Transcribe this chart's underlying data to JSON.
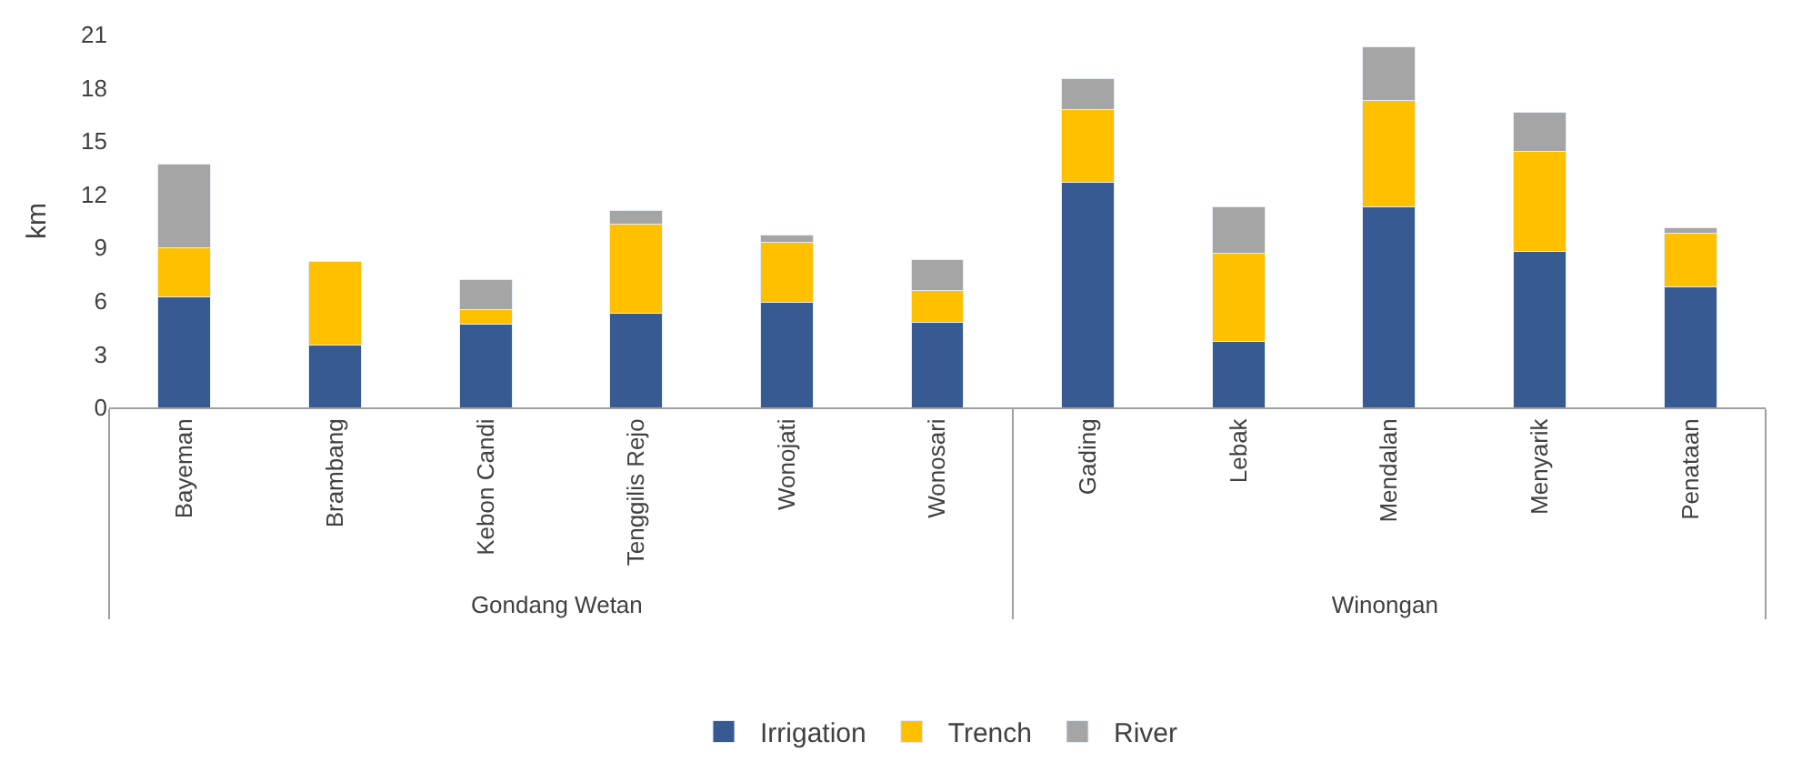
{
  "chart_data": {
    "type": "bar",
    "stacked": true,
    "ylabel": "km",
    "categories": [
      "Bayeman",
      "Brambang",
      "Kebon Candi",
      "Tenggilis Rejo",
      "Wonojati",
      "Wonosari",
      "Gading",
      "Lebak",
      "Mendalan",
      "Menyarik",
      "Penataan"
    ],
    "annotations": [
      "Gondang Wetan",
      "Winongan"
    ],
    "series": [
      {
        "name": "Irrigation",
        "color": "#365a91",
        "values": [
          6.2,
          3.5,
          4.7,
          5.3,
          5.9,
          4.8,
          12.7,
          3.7,
          11.3,
          8.8,
          6.8
        ]
      },
      {
        "name": "Trench",
        "color": "#ffc000",
        "values": [
          2.8,
          4.7,
          0.8,
          5.0,
          3.4,
          1.8,
          4.1,
          5.0,
          6.0,
          5.6,
          3.0
        ]
      },
      {
        "name": "River",
        "color": "#a5a5a5",
        "values": [
          4.7,
          null,
          1.7,
          0.8,
          0.4,
          1.7,
          1.7,
          2.6,
          3.0,
          2.2,
          0.3
        ]
      }
    ],
    "ylim": [
      0,
      21
    ],
    "yticks": [
      0,
      3,
      6,
      9,
      12,
      15,
      18,
      21
    ],
    "legend": "bottom"
  }
}
